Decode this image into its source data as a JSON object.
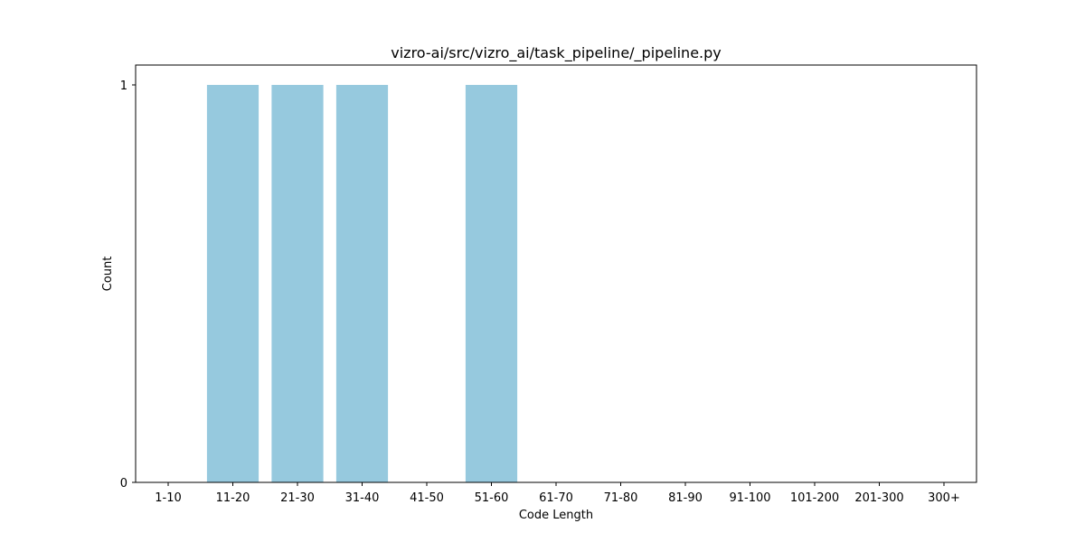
{
  "chart_data": {
    "type": "bar",
    "title": "vizro-ai/src/vizro_ai/task_pipeline/_pipeline.py",
    "xlabel": "Code Length",
    "ylabel": "Count",
    "categories": [
      "1-10",
      "11-20",
      "21-30",
      "31-40",
      "41-50",
      "51-60",
      "61-70",
      "71-80",
      "81-90",
      "91-100",
      "101-200",
      "201-300",
      "300+"
    ],
    "values": [
      0,
      1,
      1,
      1,
      0,
      1,
      0,
      0,
      0,
      0,
      0,
      0,
      0
    ],
    "yticks": [
      0,
      1
    ],
    "ylim": [
      0,
      1
    ],
    "grid": false,
    "colors": {
      "bar": "#96c9de",
      "axes": "#000000",
      "background": "#ffffff"
    }
  }
}
